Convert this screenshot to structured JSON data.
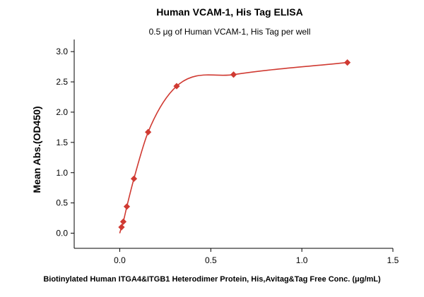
{
  "chart_data": {
    "type": "scatter",
    "title": "Human VCAM-1, His Tag ELISA",
    "subtitle": "0.5 μg of Human VCAM-1, His Tag per well",
    "xlabel": "Biotinylated Human ITGA4&ITGB1 Heterodimer Protein, His,Avitag&Tag Free Conc. (μg/mL)",
    "ylabel": "Mean Abs.(OD450)",
    "xlim": [
      -0.25,
      1.5
    ],
    "ylim": [
      -0.25,
      3.2
    ],
    "xticks": [
      "0.0",
      "0.5",
      "1.0",
      "1.5"
    ],
    "xtick_values": [
      0,
      0.5,
      1.0,
      1.5
    ],
    "yticks": [
      "0.0",
      "0.5",
      "1.0",
      "1.5",
      "2.0",
      "2.5",
      "3.0"
    ],
    "ytick_values": [
      0,
      0.5,
      1.0,
      1.5,
      2.0,
      2.5,
      3.0
    ],
    "grid": false,
    "series": [
      {
        "x": [
          0.0098,
          0.0195,
          0.039,
          0.078,
          0.156,
          0.3125,
          0.625,
          1.25
        ],
        "y": [
          0.1,
          0.19,
          0.44,
          0.9,
          1.67,
          2.43,
          2.62,
          2.82
        ],
        "marker": "diamond",
        "fit": "curve",
        "color": "#d03a32"
      }
    ]
  }
}
